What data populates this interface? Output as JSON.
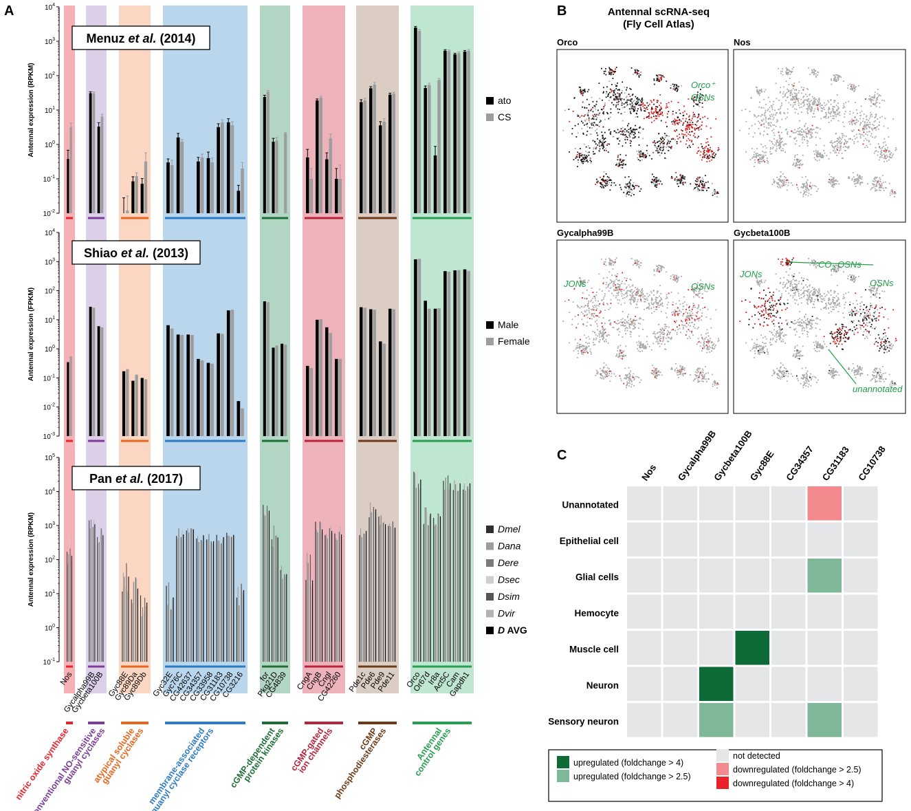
{
  "panel_letters": {
    "a": "A",
    "b": "B",
    "c": "C"
  },
  "colors": {
    "nos": "#f6b0b6",
    "conv": "#dccfe8",
    "atyp": "#fbd7c3",
    "membr": "#b9d6ec",
    "pkg": "#b3d5c4",
    "cng": "#eeb2bb",
    "pde": "#dccdc4",
    "ctrl": "#bfe6d1",
    "nos_line": "#e8232a",
    "conv_line": "#7a3c98",
    "atyp_line": "#e8661e",
    "membr_line": "#2b7bc6",
    "pkg_line": "#1d6e34",
    "cng_line": "#b5243a",
    "pde_line": "#6c3a17",
    "ctrl_line": "#26a050",
    "up4": "#0d6b38",
    "up25": "#7fb899",
    "nd": "#e5e6e7",
    "down25": "#f28a8e",
    "down4": "#e92129",
    "cell_black": "#111111",
    "cell_gray": "#a9a9a9",
    "cell_red": "#e01a1a",
    "annot_green": "#1e9e46"
  },
  "panelA": {
    "categories": [
      "Nos",
      "Gycalpha99B",
      "Gycbeta100B",
      "Gyc88E",
      "Gyc89Da",
      "Gyc89Db",
      "Gyc32E",
      "Gyc76C",
      "CG42637",
      "CG34357",
      "CG33958",
      "CG31183",
      "CG10738",
      "CG3216",
      "for",
      "Pkg21D",
      "CG4839",
      "CngA",
      "CngB",
      "Cngl",
      "CG42260",
      "Pde1c",
      "Pde6",
      "Pde9",
      "Pde11",
      "Orco",
      "Or67d",
      "Ir8a",
      "Act5C",
      "Cam",
      "Gapdh1"
    ],
    "groups": [
      {
        "key": "nos",
        "label": [
          "nitric oxide synthase"
        ],
        "count": 1
      },
      {
        "key": "conv",
        "label": [
          "conventional NO-sensitive",
          "guanyl cyclases"
        ],
        "count": 2
      },
      {
        "key": "atyp",
        "label": [
          "atypical soluble",
          "guanyl cyclases"
        ],
        "count": 3
      },
      {
        "key": "membr",
        "label": [
          "membrane-associated",
          "guanyl cyclase receptors"
        ],
        "count": 8
      },
      {
        "key": "pkg",
        "label": [
          "cGMP-dependent",
          "protein kinases"
        ],
        "count": 3
      },
      {
        "key": "cng",
        "label": [
          "cGMP-gated",
          "ion channels"
        ],
        "count": 4
      },
      {
        "key": "pde",
        "label": [
          "cGMP",
          "phosphodiesterases"
        ],
        "count": 4
      },
      {
        "key": "ctrl",
        "label": [
          "Antennal",
          "control genes"
        ],
        "count": 6
      }
    ],
    "charts": [
      {
        "type": "bar",
        "title": "Menuz et al. (2014)",
        "title_parts": [
          "Menuz ",
          "et al.",
          ", (2014)"
        ],
        "ylabel": "Antennal expression (RPKM)",
        "ylim_exp": [
          -2,
          4
        ],
        "series": [
          {
            "name": "ato",
            "color": "#000000",
            "values": [
              0.38,
              31,
              3.3,
              0.008,
              0.085,
              0.072,
              0.3,
              1.6,
              0.008,
              0.32,
              0.4,
              3.2,
              4.4,
              0.045,
              24,
              1.2,
              0.008,
              0.42,
              19,
              0.37,
              0.1,
              17,
              43,
              3.6,
              28,
              2500,
              44,
              0.48,
              530,
              420,
              500
            ],
            "errors": [
              0.3,
              3,
              1,
              0.02,
              0.03,
              0.03,
              0.08,
              0.5,
              0,
              0.1,
              0.2,
              0.8,
              1.2,
              0.02,
              3,
              0.3,
              0,
              0.3,
              2,
              0.2,
              0.1,
              3,
              5,
              1,
              3,
              200,
              6,
              0.4,
              40,
              30,
              40
            ]
          },
          {
            "name": "CS",
            "color": "#9d9d9d",
            "values": [
              3.2,
              31,
              6.5,
              0.012,
              0.12,
              0.32,
              0.25,
              1.2,
              0.008,
              0.42,
              0.3,
              4.4,
              3.6,
              0.2,
              34,
              1.3,
              2.1,
              0.1,
              23,
              1.5,
              0.1,
              19,
              55,
              4.6,
              30,
              2000,
              54,
              75,
              520,
              450,
              530
            ],
            "errors": [
              1,
              3,
              1,
              0.02,
              0.03,
              0.25,
              0.1,
              0.2,
              0,
              0.1,
              0.1,
              0.8,
              1,
              0.1,
              3,
              0.3,
              0.1,
              0.1,
              2,
              0.5,
              0.15,
              3,
              8,
              1,
              3,
              200,
              6,
              8,
              40,
              40,
              50
            ]
          }
        ]
      },
      {
        "type": "bar",
        "title": "Shiao et al. (2013)",
        "title_parts": [
          "Shiao ",
          "et al.",
          ", (2013)"
        ],
        "ylabel": "Antennal expression (FPKM)",
        "ylim_exp": [
          -3,
          4
        ],
        "series": [
          {
            "name": "Male",
            "color": "#000000",
            "values": [
              0.35,
              28,
              6,
              0.17,
              0.08,
              0.1,
              6.5,
              3.1,
              3.1,
              0.45,
              0.33,
              3.4,
              21,
              0.016,
              43,
              1.1,
              1.5,
              0.26,
              10,
              5.5,
              0.45,
              27,
              23,
              1.8,
              24,
              1200,
              45,
              24,
              470,
              500,
              540
            ]
          },
          {
            "name": "Female",
            "color": "#9d9d9d",
            "values": [
              0.55,
              26,
              5.5,
              0.2,
              0.13,
              0.09,
              5,
              3,
              3,
              0.4,
              0.31,
              3.3,
              22,
              0.009,
              40,
              1.3,
              1.4,
              0.22,
              10.5,
              3.5,
              0.45,
              26,
              22,
              1.5,
              23,
              1250,
              24,
              25,
              450,
              510,
              480
            ]
          }
        ]
      },
      {
        "type": "bar",
        "title": "Pan et al. (2017)",
        "title_parts": [
          "Pan ",
          "et al.",
          ", (2017)"
        ],
        "ylabel": "Antennal expression (RPKM)",
        "ylim_exp": [
          -1,
          5
        ],
        "series": [
          {
            "name": "Dmel",
            "italic": true,
            "color": "#2e2e2e"
          },
          {
            "name": "Dana",
            "italic": true,
            "color": "#9d9d9d"
          },
          {
            "name": "Dere",
            "italic": true,
            "color": "#7a7a7a"
          },
          {
            "name": "Dsec",
            "italic": true,
            "color": "#cfcfcf"
          },
          {
            "name": "Dsim",
            "italic": true,
            "color": "#555555"
          },
          {
            "name": "Dvir",
            "italic": true,
            "color": "#b3b3b3"
          },
          {
            "name": "D AVG",
            "italic": false,
            "prefix_italic": "D",
            "suffix": " AVG",
            "color": "#000000"
          }
        ],
        "gene_max": [
          550,
          1500,
          900,
          100,
          40,
          15,
          30,
          1000,
          1200,
          900,
          600,
          700,
          700,
          40,
          5000,
          1000,
          70,
          200,
          1500,
          1200,
          1000,
          1200,
          6000,
          2000,
          1500,
          50000,
          5000,
          5000,
          30000,
          30000,
          30000
        ],
        "gene_min": [
          30,
          800,
          300,
          10,
          5,
          2,
          2,
          300,
          500,
          300,
          200,
          300,
          400,
          4,
          1500,
          200,
          20,
          3,
          400,
          400,
          300,
          400,
          1500,
          600,
          500,
          10000,
          1000,
          700,
          10000,
          10000,
          10000
        ]
      }
    ]
  },
  "panelB": {
    "title": "Antennal scRNA-seq",
    "subtitle": "(Fly Cell Atlas)",
    "plots": [
      {
        "label": "Orco",
        "mode": "orco"
      },
      {
        "label": "Nos",
        "mode": "sparse"
      },
      {
        "label": "Gycalpha99B",
        "mode": "medium"
      },
      {
        "label": "Gycbeta100B",
        "mode": "beta"
      }
    ],
    "annotations": {
      "orco_osns": "Orco⁺",
      "osns": "OSNs",
      "jons": "JONs",
      "co2_osns": "CO",
      "co2_sub": "2",
      "co2_rest": " OSNs",
      "unannotated": "unannotated"
    }
  },
  "panelC": {
    "columns": [
      "Nos",
      "Gycalpha99B",
      "Gycbeta100B",
      "Gyc88E",
      "CG34357",
      "CG31183",
      "CG10738"
    ],
    "rows": [
      "Unannotated",
      "Epithelial cell",
      "Glial cells",
      "Hemocyte",
      "Muscle cell",
      "Neuron",
      "Sensory neuron"
    ],
    "cells": [
      [
        "nd",
        "nd",
        "nd",
        "nd",
        "nd",
        "down25",
        "nd"
      ],
      [
        "nd",
        "nd",
        "nd",
        "nd",
        "nd",
        "nd",
        "nd"
      ],
      [
        "nd",
        "nd",
        "nd",
        "nd",
        "nd",
        "up25",
        "nd"
      ],
      [
        "nd",
        "nd",
        "nd",
        "nd",
        "nd",
        "nd",
        "nd"
      ],
      [
        "nd",
        "nd",
        "nd",
        "up4",
        "nd",
        "nd",
        "nd"
      ],
      [
        "nd",
        "nd",
        "up4",
        "nd",
        "nd",
        "nd",
        "nd"
      ],
      [
        "nd",
        "nd",
        "up25",
        "nd",
        "nd",
        "up25",
        "nd"
      ]
    ],
    "legend": [
      {
        "key": "up4",
        "text": "upregulated (foldchange > 4)"
      },
      {
        "key": "up25",
        "text": "upregulated (foldchange > 2.5)"
      },
      {
        "key": "nd",
        "text": "not detected"
      },
      {
        "key": "down25",
        "text": "downregulated (foldchange > 2.5)"
      },
      {
        "key": "down4",
        "text": "downregulated (foldchange > 4)"
      }
    ]
  }
}
